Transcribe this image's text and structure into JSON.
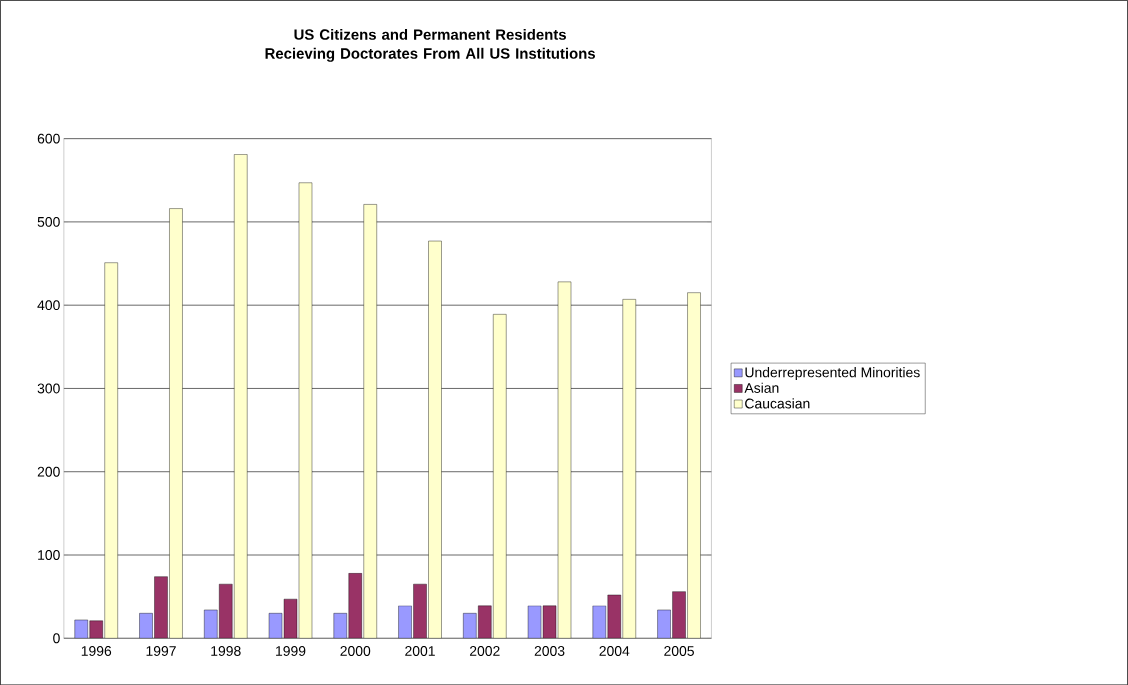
{
  "chart_data": {
    "type": "bar",
    "title": "US Citizens and Permanent Residents Recieving Doctorates From All US Institutions",
    "categories": [
      "1996",
      "1997",
      "1998",
      "1999",
      "2000",
      "2001",
      "2002",
      "2003",
      "2004",
      "2005"
    ],
    "series": [
      {
        "name": "Underrepresented Minorities",
        "color": "#9999ff",
        "values": [
          22,
          30,
          34,
          30,
          30,
          39,
          30,
          39,
          39,
          34
        ]
      },
      {
        "name": "Asian",
        "color": "#993366",
        "values": [
          21,
          74,
          65,
          47,
          78,
          65,
          39,
          39,
          52,
          56
        ]
      },
      {
        "name": "Caucasian",
        "color": "#ffffcc",
        "values": [
          451,
          516,
          581,
          547,
          521,
          477,
          389,
          428,
          407,
          415
        ]
      }
    ],
    "ylim": [
      0,
      600
    ],
    "yticks": [
      0,
      100,
      200,
      300,
      400,
      500,
      600
    ],
    "grid": "y",
    "legend": "right"
  }
}
